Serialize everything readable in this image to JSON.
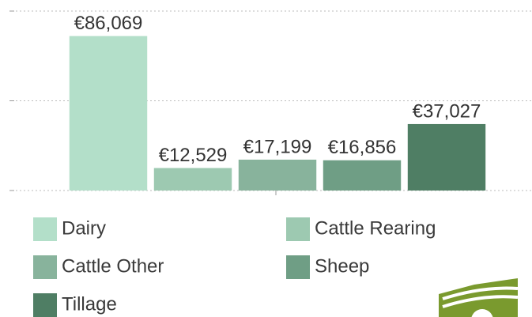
{
  "chart_data": {
    "type": "bar",
    "categories": [
      "Dairy",
      "Cattle Rearing",
      "Cattle Other",
      "Sheep",
      "Tillage"
    ],
    "values": [
      86069,
      12529,
      17199,
      16856,
      37027
    ],
    "value_labels": [
      "€86,069",
      "€12,529",
      "€17,199",
      "€16,856",
      "€37,027"
    ],
    "colors": [
      "#b3dfc9",
      "#9dc9b1",
      "#88b39c",
      "#6f9e85",
      "#4f7e64"
    ],
    "ylim": [
      0,
      100000
    ],
    "yticks": [
      0,
      50000,
      100000
    ],
    "grid": true
  }
}
